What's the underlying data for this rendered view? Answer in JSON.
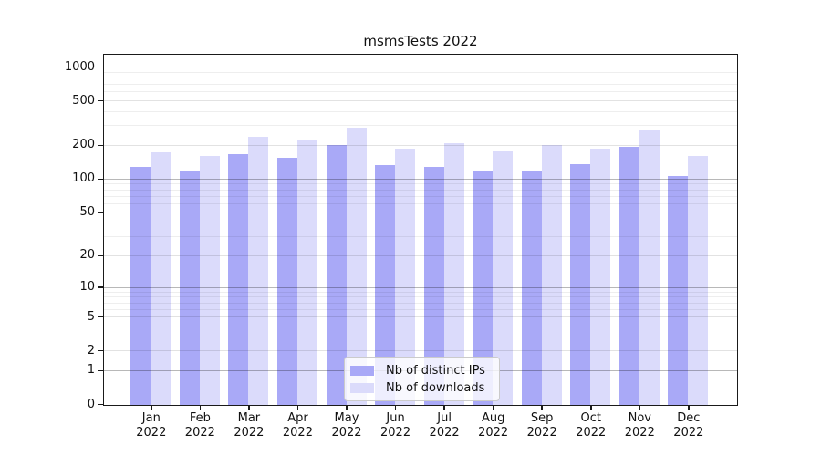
{
  "title": "msmsTests 2022",
  "chart_data": {
    "type": "bar",
    "title": "msmsTests 2022",
    "yscale": "log1p",
    "categories": [
      "Jan 2022",
      "Feb 2022",
      "Mar 2022",
      "Apr 2022",
      "May 2022",
      "Jun 2022",
      "Jul 2022",
      "Aug 2022",
      "Sep 2022",
      "Oct 2022",
      "Nov 2022",
      "Dec 2022"
    ],
    "category_line1": [
      "Jan",
      "Feb",
      "Mar",
      "Apr",
      "May",
      "Jun",
      "Jul",
      "Aug",
      "Sep",
      "Oct",
      "Nov",
      "Dec"
    ],
    "category_line2": "2022",
    "series": [
      {
        "name": "Nb of distinct IPs",
        "color": "#a9a9f7",
        "values": [
          131,
          118,
          169,
          156,
          202,
          134,
          131,
          118,
          121,
          137,
          197,
          108
        ]
      },
      {
        "name": "Nb of downloads",
        "color": "#dbdbfb",
        "values": [
          175,
          162,
          240,
          229,
          292,
          188,
          210,
          178,
          205,
          190,
          277,
          163
        ]
      }
    ],
    "yticks": [
      1000,
      500,
      200,
      100,
      50,
      20,
      10,
      5,
      2,
      1,
      0
    ],
    "ylim": [
      0,
      1300
    ],
    "xlabel": "",
    "ylabel": "",
    "grid": true,
    "legend_position": "bottom-center"
  }
}
